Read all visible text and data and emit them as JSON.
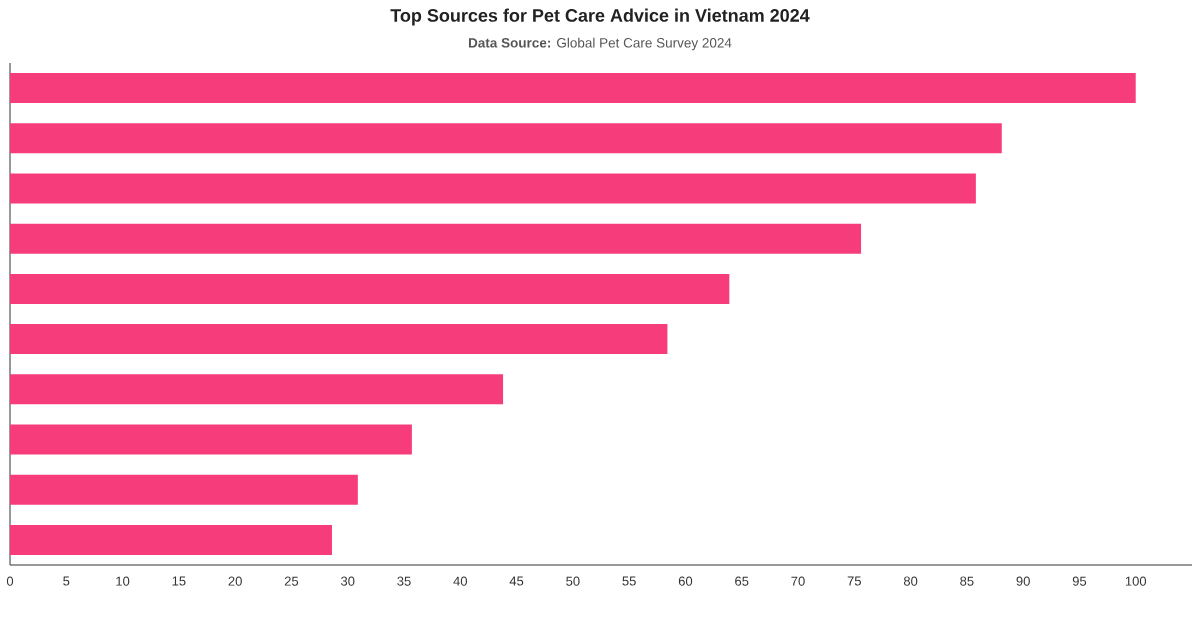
{
  "chart_data": {
    "type": "bar",
    "orientation": "horizontal",
    "title": "Top Sources for Pet Care Advice in Vietnam 2024",
    "subtitle": "**Data Source:** Global Pet Care Survey 2024",
    "categories": [
      null,
      null,
      null,
      null,
      null,
      null,
      null,
      null,
      null,
      null
    ],
    "values": [
      100,
      88.1,
      85.8,
      75.6,
      63.9,
      58.4,
      43.8,
      35.7,
      30.9,
      28.6
    ],
    "color": "#f73c7c",
    "xlim": [
      0,
      105
    ],
    "xticks": [
      0,
      5,
      10,
      15,
      20,
      25,
      30,
      35,
      40,
      45,
      50,
      55,
      60,
      65,
      70,
      75,
      80,
      85,
      90,
      95,
      100
    ]
  }
}
